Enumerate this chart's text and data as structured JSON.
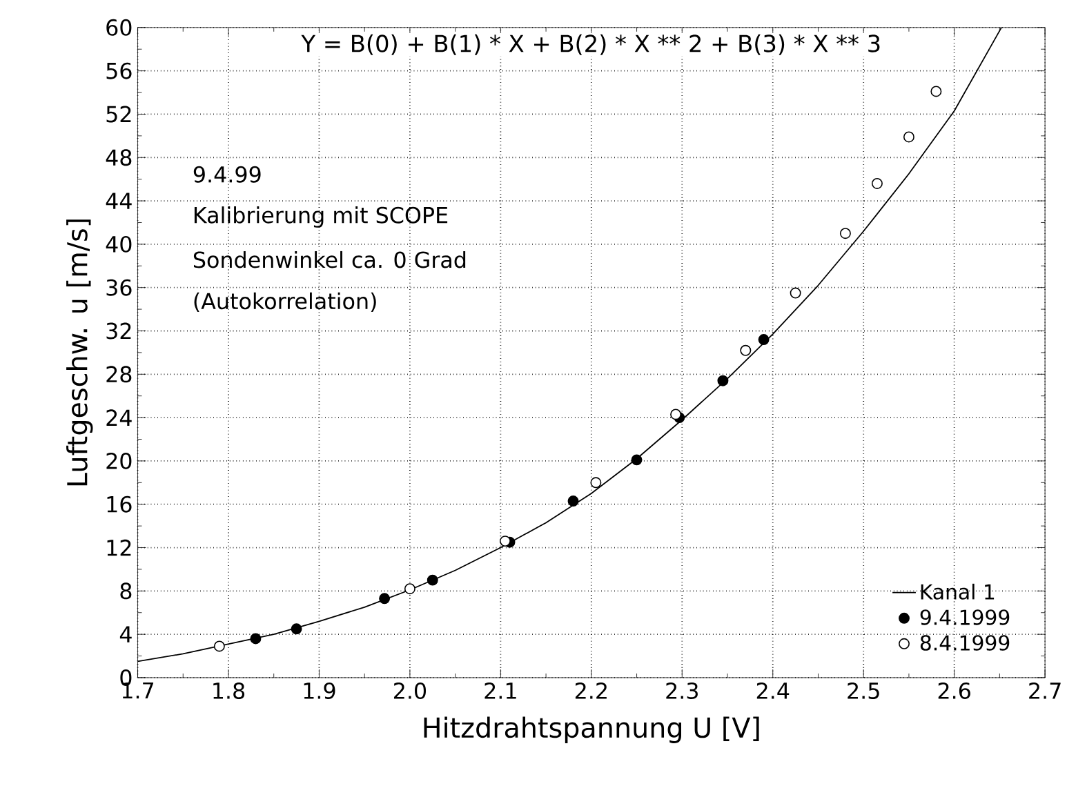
{
  "chart_data": {
    "type": "scatter",
    "xlabel": "Hitzdrahtspannung U [V]",
    "ylabel": "Luftgeschw. u [m/s]",
    "annotations": [
      "Y = B(0) + B(1) * X + B(2) * X ** 2 + B(3) * X ** 3",
      "9.4.99",
      "Kalibrierung mit SCOPE",
      "Sondenwinkel ca. 0 Grad",
      "(Autokorrelation)"
    ],
    "xlim": [
      1.7,
      2.7
    ],
    "ylim": [
      0,
      60
    ],
    "xticks": [
      1.7,
      1.8,
      1.9,
      {
        "value": 2.0,
        "label": "2.0"
      },
      2.1,
      2.2,
      2.3,
      2.4,
      2.5,
      2.6,
      2.7
    ],
    "yticks": [
      0,
      4,
      8,
      12,
      16,
      20,
      24,
      28,
      32,
      36,
      40,
      44,
      48,
      52,
      56,
      60
    ],
    "grid": true,
    "legend": "bottom right",
    "series": [
      {
        "name": "Kanal 1",
        "type": "line",
        "color": "#000000",
        "marker": "none",
        "x": [
          1.7,
          1.75,
          1.8,
          1.85,
          1.9,
          1.95,
          2.0,
          2.05,
          2.1,
          2.15,
          2.2,
          2.25,
          2.3,
          2.35,
          2.4,
          2.45,
          2.5,
          2.55,
          2.6,
          2.652
        ],
        "values": [
          1.5,
          2.2,
          3.1,
          4.0,
          5.2,
          6.5,
          8.1,
          9.9,
          12.0,
          14.3,
          17.0,
          20.2,
          23.8,
          27.6,
          31.7,
          36.2,
          41.2,
          46.5,
          52.3,
          60
        ]
      },
      {
        "name": "9.4.1999",
        "color": "#000000",
        "marker": "circle",
        "x": [
          1.83,
          1.875,
          1.972,
          2.025,
          2.11,
          2.18,
          2.25,
          2.297,
          2.345,
          2.39
        ],
        "values": [
          3.6,
          4.5,
          7.3,
          9.0,
          12.5,
          16.3,
          20.1,
          24.0,
          27.4,
          31.2
        ]
      },
      {
        "name": "8.4.1999",
        "color": "#000000",
        "marker": "circle",
        "x": [
          1.79,
          2.0,
          2.105,
          2.205,
          2.293,
          2.37,
          2.425,
          2.48,
          2.515,
          2.55,
          2.58
        ],
        "values": [
          2.9,
          8.2,
          12.6,
          18.0,
          24.3,
          30.2,
          35.5,
          41.0,
          45.6,
          49.9,
          54.1
        ]
      }
    ]
  }
}
